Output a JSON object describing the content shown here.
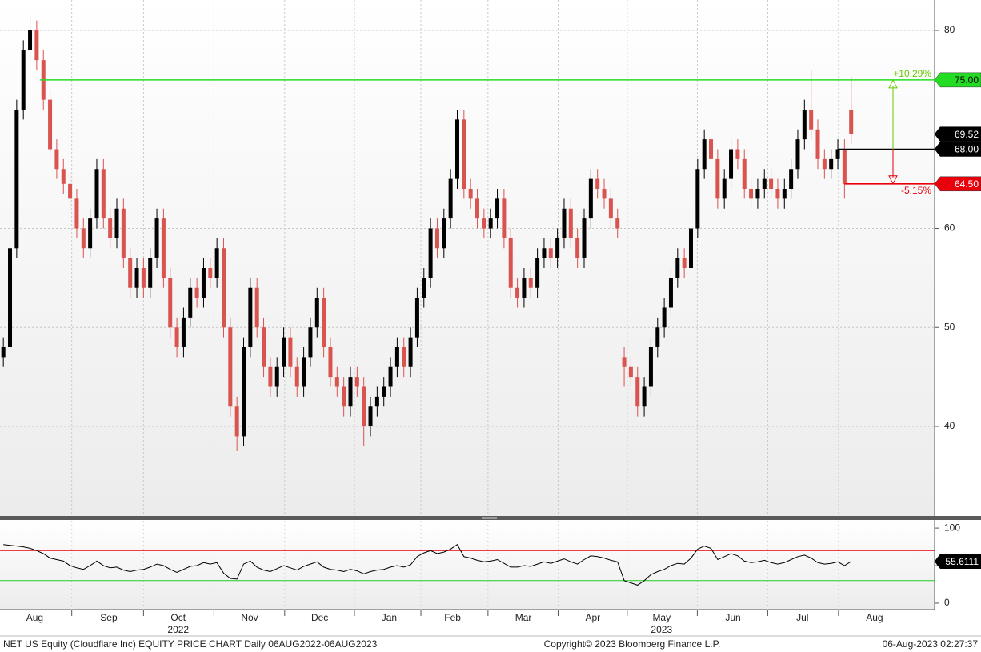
{
  "chart_data": [
    {
      "type": "candlestick",
      "series": [
        {
          "up_color": "#000000",
          "down_color": "#d9534f",
          "open": [
            47,
            48,
            58,
            72,
            78,
            80,
            77,
            73,
            68,
            66,
            64.5,
            63,
            60,
            58,
            61,
            66,
            61,
            59,
            62,
            57,
            54,
            56,
            54,
            57,
            61,
            55,
            50,
            48,
            51,
            54,
            53,
            56,
            55,
            58,
            50,
            42,
            39,
            48,
            54,
            50,
            46,
            44,
            46,
            49,
            46,
            44,
            47,
            50,
            53,
            48,
            45,
            44,
            42,
            45,
            44,
            40,
            42,
            43,
            44,
            46,
            48,
            46,
            49,
            53,
            55,
            60,
            58,
            61,
            65,
            71,
            64,
            63,
            61,
            60,
            61,
            63,
            59,
            54,
            53,
            55,
            54,
            57,
            58,
            57,
            59,
            62,
            59,
            57,
            61,
            65,
            64,
            63,
            61,
            47,
            46,
            45,
            42,
            44,
            48,
            50,
            52,
            55,
            57,
            56,
            60,
            66,
            69,
            67,
            63,
            65,
            68,
            67,
            64,
            63,
            64,
            65,
            64,
            63,
            64,
            66,
            69,
            72,
            70,
            67,
            66,
            67,
            68,
            72
          ],
          "high": [
            49,
            59,
            73,
            79,
            81.5,
            81,
            78,
            74,
            69,
            67,
            65.5,
            64,
            61,
            62,
            67,
            67,
            62,
            63,
            63,
            58,
            57,
            57,
            58,
            62,
            62,
            56,
            51,
            52,
            55,
            55,
            57,
            57,
            59,
            59,
            51,
            43,
            49,
            55,
            55,
            51,
            47,
            47,
            50,
            50,
            47,
            48,
            51,
            54,
            54,
            49,
            46,
            45,
            46,
            46,
            45,
            43,
            44,
            45,
            47,
            49,
            49,
            50,
            54,
            56,
            61,
            61,
            62,
            66,
            72,
            72,
            65,
            64,
            62,
            62,
            64,
            64,
            60,
            55,
            56,
            56,
            58,
            59,
            59,
            60,
            63,
            63,
            60,
            62,
            66,
            66,
            65,
            64,
            62,
            48,
            47,
            46,
            45,
            49,
            51,
            53,
            56,
            58,
            58,
            61,
            67,
            70,
            70,
            68,
            66,
            69,
            69,
            68,
            65,
            65,
            66,
            66,
            65,
            65,
            67,
            70,
            73,
            76,
            71,
            68,
            68,
            69,
            69,
            75.3
          ],
          "low": [
            46,
            47,
            57,
            71,
            77,
            76,
            72,
            67,
            65,
            63.5,
            62,
            59,
            57,
            57,
            60,
            60,
            58,
            58,
            56,
            53,
            53,
            53,
            53,
            56,
            54,
            49,
            47,
            47,
            50,
            52,
            52,
            54,
            54,
            49,
            41,
            37.5,
            38,
            47,
            49,
            45,
            43,
            43,
            45,
            45,
            43,
            43,
            46,
            49,
            47,
            44,
            43,
            41,
            41,
            43,
            38,
            39,
            41,
            42,
            43,
            45,
            45,
            45,
            48,
            52,
            54,
            57,
            57,
            60,
            64,
            63,
            62,
            60,
            59,
            59,
            60,
            58,
            53,
            52,
            52,
            53,
            53,
            56,
            56,
            56,
            58,
            58,
            56,
            56,
            60,
            63,
            62,
            60,
            59,
            44,
            44,
            41,
            41,
            43,
            47,
            49,
            51,
            54,
            55,
            55,
            59,
            65,
            66,
            62,
            62,
            64,
            66,
            63,
            62,
            62,
            63,
            63,
            62,
            62,
            63,
            65,
            68,
            69,
            66,
            65,
            65,
            66,
            63,
            68.5
          ],
          "close": [
            48,
            58,
            72,
            78,
            80,
            77,
            73,
            68,
            66,
            64.5,
            63,
            60,
            58,
            61,
            66,
            61,
            59,
            62,
            57,
            54,
            56,
            54,
            57,
            61,
            55,
            50,
            48,
            51,
            54,
            53,
            56,
            55,
            58,
            50,
            42,
            39,
            48,
            54,
            50,
            46,
            44,
            46,
            49,
            46,
            44,
            47,
            50,
            53,
            48,
            45,
            44,
            42,
            45,
            44,
            40,
            42,
            43,
            44,
            46,
            48,
            46,
            49,
            53,
            55,
            60,
            58,
            61,
            65,
            71,
            64,
            63,
            61,
            60,
            61,
            63,
            59,
            54,
            53,
            55,
            54,
            57,
            58,
            57,
            59,
            62,
            59,
            57,
            61,
            65,
            64,
            63,
            61,
            60,
            46,
            45,
            42,
            44,
            48,
            50,
            52,
            55,
            57,
            56,
            60,
            66,
            69,
            67,
            63,
            65,
            68,
            67,
            64,
            63,
            64,
            65,
            64,
            63,
            64,
            66,
            69,
            72,
            70,
            67,
            66,
            67,
            68,
            64.5,
            69.52
          ]
        }
      ],
      "xlim": [
        -0.5,
        139.5
      ],
      "xticks": [
        {
          "value": 4.7,
          "label": "Aug"
        },
        {
          "value": 15.8,
          "label": "Sep"
        },
        {
          "value": 26.2,
          "label": "Oct"
        },
        {
          "value": 36.9,
          "label": "Nov"
        },
        {
          "value": 47.4,
          "label": "Dec"
        },
        {
          "value": 57.8,
          "label": "Jan"
        },
        {
          "value": 67.3,
          "label": "Feb"
        },
        {
          "value": 77.9,
          "label": "Mar"
        },
        {
          "value": 88.3,
          "label": "Apr"
        },
        {
          "value": 98.6,
          "label": "May"
        },
        {
          "value": 109.3,
          "label": "Jun"
        },
        {
          "value": 119.7,
          "label": "Jul"
        },
        {
          "value": 130.5,
          "label": "Aug"
        }
      ],
      "year_labels": [
        {
          "value": 26.2,
          "label": "2022"
        },
        {
          "value": 98.6,
          "label": "2023"
        }
      ],
      "ylim": [
        30.95,
        83.07
      ],
      "yticks": [
        40,
        50,
        60,
        80
      ],
      "grid": true,
      "hlines": [
        {
          "value": 75,
          "label": "75.00",
          "color": "#22dd22",
          "from": 5.5
        },
        {
          "value": 68,
          "label": "68.00",
          "color": "#000000",
          "from": 125
        },
        {
          "value": 64.5,
          "label": "64.50",
          "color": "#e8000b",
          "from": 126
        }
      ],
      "annotations": [
        {
          "value": 10.29,
          "label": "+10.29%",
          "color": "#66cc00"
        },
        {
          "value": -5.15,
          "label": "-5.15%",
          "color": "#e8000b"
        }
      ]
    },
    {
      "type": "line",
      "series": [
        {
          "color": "#000000",
          "values": [
            78,
            77,
            76,
            75,
            73,
            70,
            66,
            60,
            58,
            56,
            50,
            47,
            45,
            50,
            56,
            50,
            47,
            48,
            44,
            42,
            44,
            45,
            48,
            52,
            50,
            45,
            41,
            45,
            49,
            50,
            54,
            52,
            54,
            40,
            33,
            32,
            52,
            56,
            48,
            44,
            42,
            46,
            50,
            47,
            44,
            49,
            52,
            55,
            48,
            45,
            44,
            42,
            45,
            43,
            39,
            42,
            44,
            45,
            48,
            50,
            48,
            51,
            62,
            67,
            70,
            66,
            68,
            72,
            78,
            62,
            60,
            57,
            55,
            56,
            58,
            53,
            48,
            48,
            50,
            49,
            52,
            55,
            53,
            56,
            59,
            55,
            52,
            58,
            63,
            62,
            60,
            57,
            55,
            30,
            27,
            24,
            30,
            38,
            42,
            45,
            50,
            53,
            52,
            60,
            72,
            76,
            73,
            58,
            62,
            66,
            63,
            56,
            54,
            55,
            57,
            54,
            52,
            54,
            58,
            62,
            64,
            60,
            54,
            52,
            53,
            55,
            50,
            55.6111
          ]
        }
      ],
      "ylim": [
        -8.6,
        109.7
      ],
      "yticks": [
        0,
        50,
        100
      ],
      "hlines": [
        {
          "value": 70,
          "color": "#e8000b"
        },
        {
          "value": 30,
          "color": "#22cc22"
        }
      ]
    }
  ],
  "footer": {
    "left": "NET US Equity (Cloudflare Inc) EQUITY PRICE CHART  Daily 06AUG2022-06AUG2023",
    "center": "Copyright© 2023 Bloomberg Finance L.P.",
    "right": "06-Aug-2023 02:27:37"
  }
}
